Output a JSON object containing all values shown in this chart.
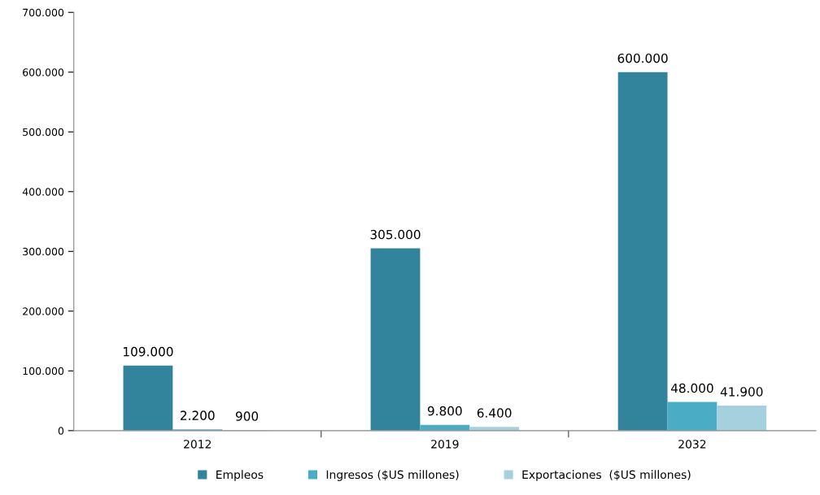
{
  "chart_data": {
    "type": "bar",
    "categories": [
      "2012",
      "2019",
      "2032"
    ],
    "series": [
      {
        "name": "Empleos",
        "color": "#31849b",
        "values": [
          109000,
          305000,
          600000
        ],
        "value_labels": [
          "109.000",
          "305.000",
          "600.000"
        ]
      },
      {
        "name": "Ingresos ($US millones)",
        "color": "#4bacc6",
        "values": [
          2200,
          9800,
          48000
        ],
        "value_labels": [
          "2.200",
          "9.800",
          "48.000"
        ]
      },
      {
        "name": "Exportaciones  ($US millones)",
        "color": "#a5d0dd",
        "values": [
          900,
          6400,
          41900
        ],
        "value_labels": [
          "900",
          "6.400",
          "41.900"
        ]
      }
    ],
    "ylim": [
      0,
      700000
    ],
    "yticks": [
      0,
      {
        "value": 100000,
        "label": "100.000"
      },
      {
        "value": 200000,
        "label": "200.000"
      },
      {
        "value": 300000,
        "label": "300.000"
      },
      {
        "value": 400000,
        "label": "400.000"
      },
      {
        "value": 500000,
        "label": "500.000"
      },
      {
        "value": 600000,
        "label": "600.000"
      },
      {
        "value": 700000,
        "label": "700.000"
      }
    ],
    "grid": false,
    "legend": "bottom"
  }
}
